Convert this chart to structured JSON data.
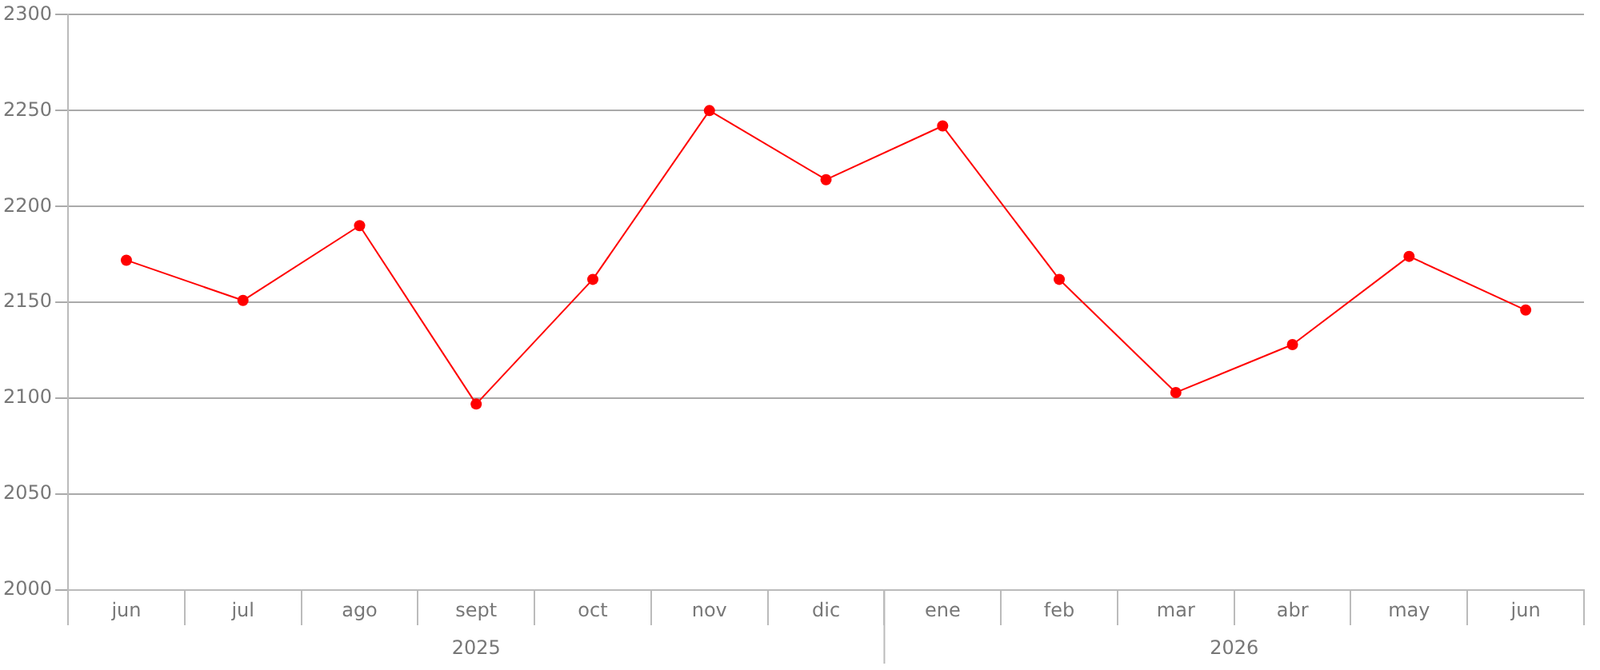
{
  "chart_data": {
    "type": "line",
    "categories": [
      "jun",
      "jul",
      "ago",
      "sept",
      "oct",
      "nov",
      "dic",
      "ene",
      "feb",
      "mar",
      "abr",
      "may",
      "jun"
    ],
    "series": [
      {
        "color": "#ff0000",
        "values": [
          2172,
          2151,
          2190,
          2097,
          2162,
          2250,
          2214,
          2242,
          2162,
          2103,
          2128,
          2174,
          2146
        ]
      }
    ],
    "ylim": [
      2000,
      2300
    ],
    "yticks": [
      2000,
      2050,
      2100,
      2150,
      2200,
      2250,
      2300
    ],
    "grid": "y",
    "marker": "circle",
    "line_style": "solid",
    "legend": false,
    "annotations": [
      "2025",
      "2026"
    ]
  }
}
